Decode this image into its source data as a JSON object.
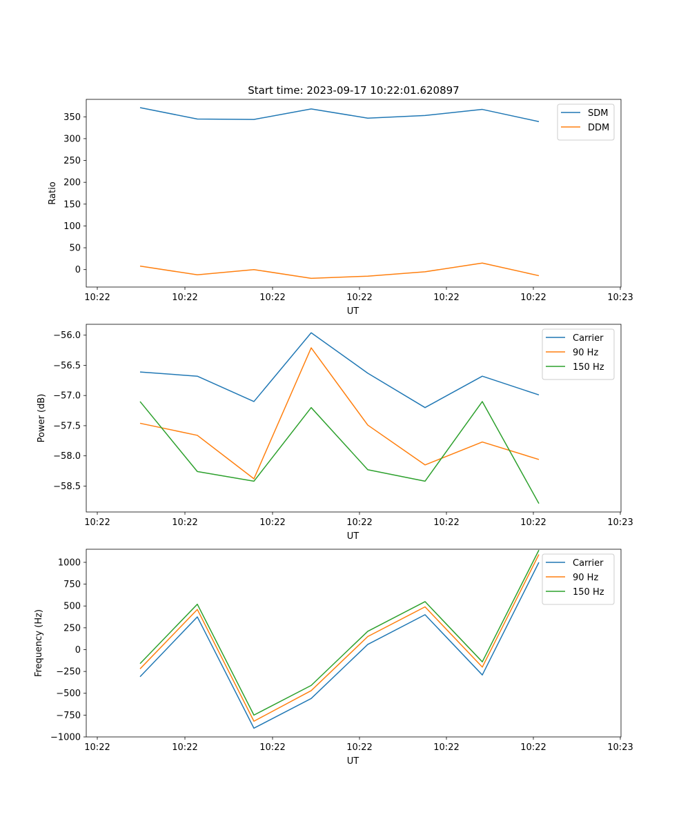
{
  "chart_data": [
    {
      "type": "line",
      "title": "Start time: 2023-09-17 10:22:01.620897",
      "xlabel": "UT",
      "ylabel": "Ratio",
      "x_tick_labels": [
        "10:22",
        "10:22",
        "10:22",
        "10:22",
        "10:22",
        "10:22",
        "10:23"
      ],
      "y_ticks": [
        0,
        50,
        100,
        150,
        200,
        250,
        300,
        350
      ],
      "y_tick_labels": [
        "0",
        "50",
        "100",
        "150",
        "200",
        "250",
        "300",
        "350"
      ],
      "ylim": [
        -40,
        390
      ],
      "legend_position": "top-right",
      "series": [
        {
          "name": "SDM",
          "color": "#1f77b4",
          "values": [
            371,
            345,
            344,
            368,
            347,
            353,
            367,
            339
          ]
        },
        {
          "name": "DDM",
          "color": "#ff7f0e",
          "values": [
            8,
            -12,
            0,
            -20,
            -15,
            -5,
            15,
            -14
          ]
        }
      ]
    },
    {
      "type": "line",
      "title": "",
      "xlabel": "UT",
      "ylabel": "Power (dB)",
      "x_tick_labels": [
        "10:22",
        "10:22",
        "10:22",
        "10:22",
        "10:22",
        "10:22",
        "10:23"
      ],
      "y_ticks": [
        -56.0,
        -56.5,
        -57.0,
        -57.5,
        -58.0,
        -58.5
      ],
      "y_tick_labels": [
        "−56.0",
        "−56.5",
        "−57.0",
        "−57.5",
        "−58.0",
        "−58.5"
      ],
      "ylim": [
        -58.93,
        -55.82
      ],
      "legend_position": "top-right",
      "series": [
        {
          "name": "Carrier",
          "color": "#1f77b4",
          "values": [
            -56.61,
            -56.68,
            -57.1,
            -55.96,
            -56.63,
            -57.2,
            -56.68,
            -56.99
          ]
        },
        {
          "name": "90 Hz",
          "color": "#ff7f0e",
          "values": [
            -57.46,
            -57.66,
            -58.38,
            -56.21,
            -57.49,
            -58.15,
            -57.77,
            -58.06
          ]
        },
        {
          "name": "150 Hz",
          "color": "#2ca02c",
          "values": [
            -57.1,
            -58.26,
            -58.42,
            -57.2,
            -58.23,
            -58.42,
            -57.1,
            -58.79
          ]
        }
      ]
    },
    {
      "type": "line",
      "title": "",
      "xlabel": "UT",
      "ylabel": "Frequency (Hz)",
      "x_tick_labels": [
        "10:22",
        "10:22",
        "10:22",
        "10:22",
        "10:22",
        "10:22",
        "10:23"
      ],
      "y_ticks": [
        1000,
        750,
        500,
        250,
        0,
        -250,
        -500,
        -750,
        -1000
      ],
      "y_tick_labels": [
        "1000",
        "750",
        "500",
        "250",
        "0",
        "−250",
        "−500",
        "−750",
        "−1000"
      ],
      "ylim": [
        -1000,
        1150
      ],
      "legend_position": "top-right",
      "series": [
        {
          "name": "Carrier",
          "color": "#1f77b4",
          "values": [
            -310,
            375,
            -900,
            -560,
            60,
            400,
            -290,
            1000
          ]
        },
        {
          "name": "90 Hz",
          "color": "#ff7f0e",
          "values": [
            -220,
            460,
            -820,
            -470,
            150,
            490,
            -200,
            1090
          ]
        },
        {
          "name": "150 Hz",
          "color": "#2ca02c",
          "values": [
            -160,
            520,
            -750,
            -410,
            210,
            550,
            -140,
            1140
          ]
        }
      ]
    }
  ]
}
